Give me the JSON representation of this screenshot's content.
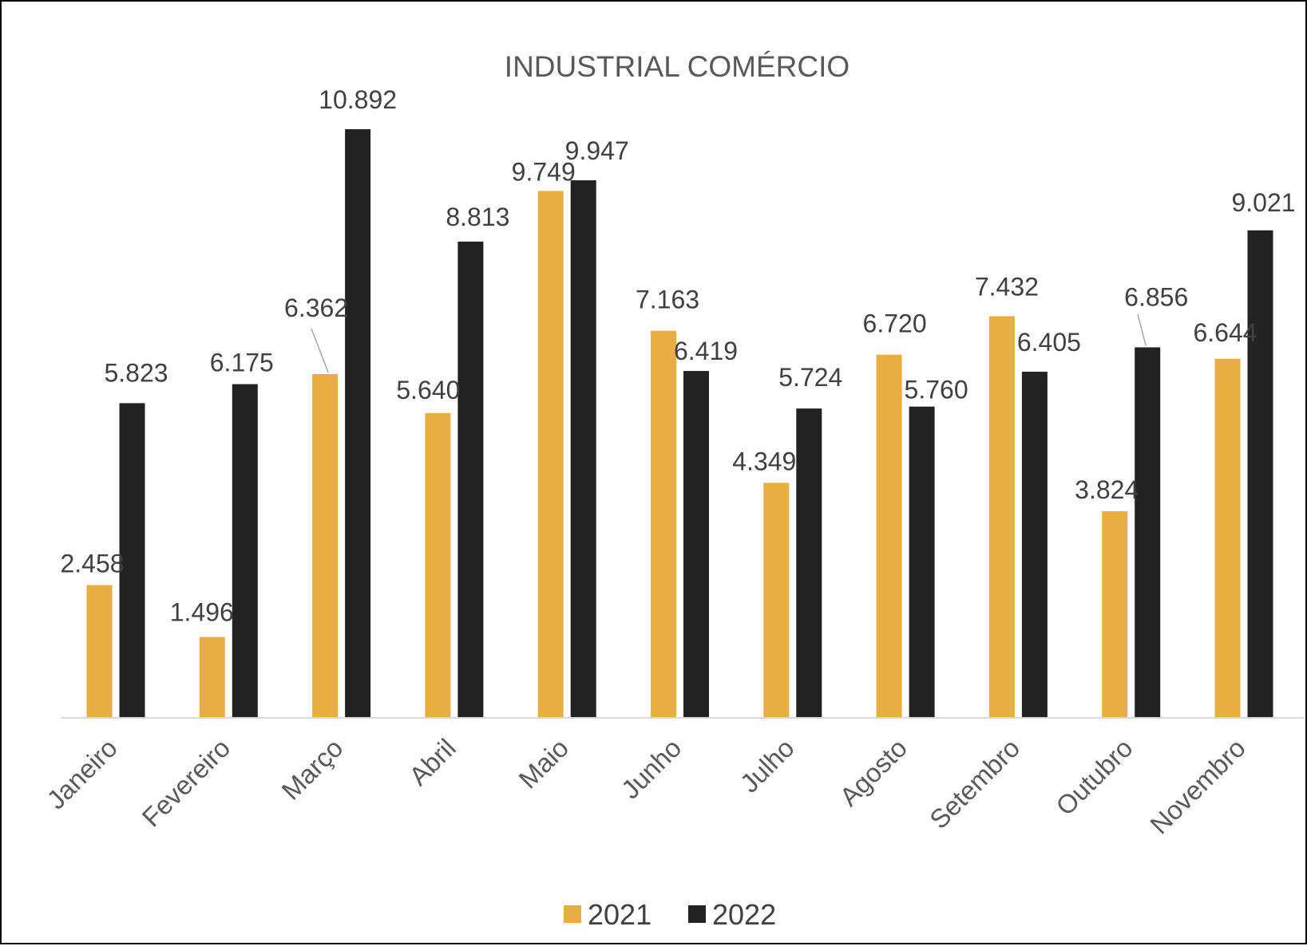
{
  "chart_data": {
    "type": "bar",
    "title": "INDUSTRIAL COMÉRCIO",
    "xlabel": "",
    "ylabel": "",
    "ylim": [
      0,
      12000
    ],
    "grid": false,
    "legend_position": "bottom",
    "categories": [
      "Janeiro",
      "Fevereiro",
      "Março",
      "Abril",
      "Maio",
      "Junho",
      "Julho",
      "Agosto",
      "Setembro",
      "Outubro",
      "Novembro"
    ],
    "series": [
      {
        "name": "2021",
        "color": "#E8AE44",
        "values": [
          2458,
          1496,
          6362,
          5640,
          9749,
          7163,
          4349,
          6720,
          7432,
          3824,
          6644
        ],
        "labels": [
          "2.458",
          "1.496",
          "6.362",
          "5.640",
          "9.749",
          "7.163",
          "4.349",
          "6.720",
          "7.432",
          "3.824",
          "6.644"
        ]
      },
      {
        "name": "2022",
        "color": "#222222",
        "values": [
          5823,
          6175,
          10892,
          8813,
          9947,
          6419,
          5724,
          5760,
          6405,
          6856,
          9021
        ],
        "labels": [
          "5.823",
          "6.175",
          "10.892",
          "8.813",
          "9.947",
          "6.419",
          "5.724",
          "5.760",
          "6.405",
          "6.856",
          "9.021"
        ]
      }
    ]
  }
}
